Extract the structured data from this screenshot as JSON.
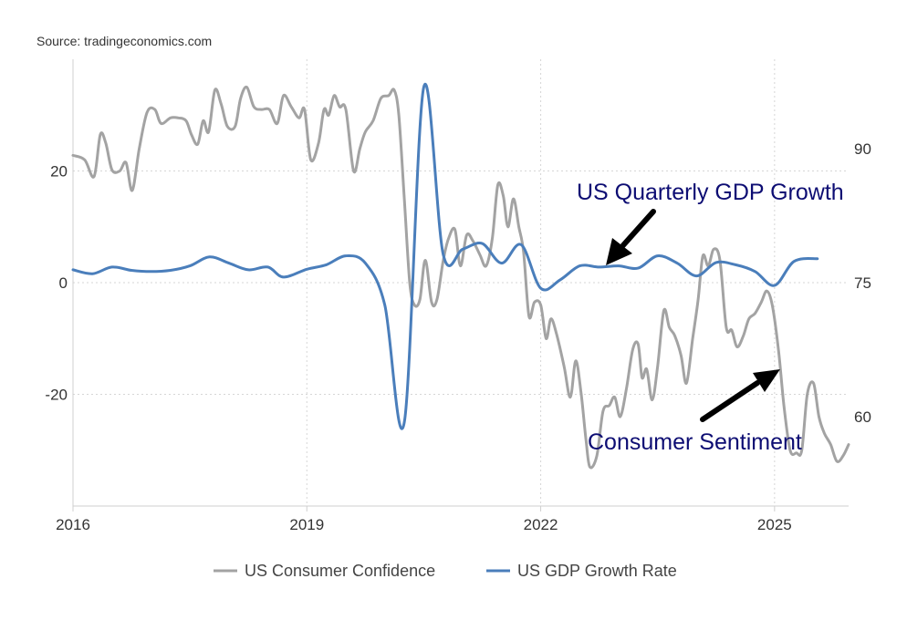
{
  "source": "Source: tradingeconomics.com",
  "chart_data": {
    "type": "line",
    "title": "",
    "xlabel": "",
    "ylabel": "",
    "x_range": [
      2016.0,
      2025.95
    ],
    "x_ticks": [
      {
        "value": 2016,
        "label": "2016"
      },
      {
        "value": 2019,
        "label": "2019"
      },
      {
        "value": 2022,
        "label": "2022"
      },
      {
        "value": 2025,
        "label": "2025"
      }
    ],
    "y_left": {
      "range": [
        -40,
        40
      ],
      "ticks": [
        {
          "value": 20,
          "label": "20"
        },
        {
          "value": 0,
          "label": "0"
        },
        {
          "value": -20,
          "label": "-20"
        }
      ]
    },
    "y_right": {
      "range": [
        50,
        100
      ],
      "ticks": [
        {
          "value": 90,
          "label": "90"
        },
        {
          "value": 75,
          "label": "75"
        },
        {
          "value": 60,
          "label": "60"
        }
      ]
    },
    "grid": true,
    "legend_position": "bottom-center",
    "series": [
      {
        "name": "US Consumer Confidence",
        "axis": "left",
        "color": "#a3a3a3",
        "points": [
          [
            2016.0,
            22.8
          ],
          [
            2016.15,
            22.0
          ],
          [
            2016.27,
            19.0
          ],
          [
            2016.35,
            26.5
          ],
          [
            2016.42,
            25.0
          ],
          [
            2016.5,
            20.2
          ],
          [
            2016.6,
            20.0
          ],
          [
            2016.68,
            21.5
          ],
          [
            2016.76,
            16.5
          ],
          [
            2016.85,
            24.0
          ],
          [
            2016.95,
            30.5
          ],
          [
            2017.05,
            31.0
          ],
          [
            2017.13,
            28.5
          ],
          [
            2017.25,
            29.5
          ],
          [
            2017.35,
            29.5
          ],
          [
            2017.45,
            29.0
          ],
          [
            2017.52,
            26.5
          ],
          [
            2017.6,
            24.8
          ],
          [
            2017.67,
            29.0
          ],
          [
            2017.74,
            27.0
          ],
          [
            2017.82,
            34.5
          ],
          [
            2017.9,
            32.0
          ],
          [
            2017.98,
            28.0
          ],
          [
            2018.08,
            28.0
          ],
          [
            2018.15,
            33.0
          ],
          [
            2018.23,
            35.0
          ],
          [
            2018.32,
            31.5
          ],
          [
            2018.42,
            31.0
          ],
          [
            2018.52,
            31.0
          ],
          [
            2018.62,
            28.5
          ],
          [
            2018.7,
            33.5
          ],
          [
            2018.8,
            31.5
          ],
          [
            2018.9,
            29.5
          ],
          [
            2018.97,
            31.0
          ],
          [
            2019.05,
            22.0
          ],
          [
            2019.15,
            25.0
          ],
          [
            2019.22,
            31.0
          ],
          [
            2019.28,
            30.0
          ],
          [
            2019.35,
            33.5
          ],
          [
            2019.42,
            31.5
          ],
          [
            2019.5,
            31.0
          ],
          [
            2019.6,
            20.0
          ],
          [
            2019.68,
            24.0
          ],
          [
            2019.75,
            27.0
          ],
          [
            2019.85,
            29.0
          ],
          [
            2019.95,
            33.0
          ],
          [
            2020.05,
            33.5
          ],
          [
            2020.12,
            34.5
          ],
          [
            2020.18,
            30.0
          ],
          [
            2020.25,
            15.0
          ],
          [
            2020.32,
            0.0
          ],
          [
            2020.38,
            -4.0
          ],
          [
            2020.45,
            -3.0
          ],
          [
            2020.52,
            4.0
          ],
          [
            2020.6,
            -3.5
          ],
          [
            2020.67,
            -3.0
          ],
          [
            2020.75,
            4.0
          ],
          [
            2020.82,
            8.0
          ],
          [
            2020.9,
            9.5
          ],
          [
            2020.97,
            3.0
          ],
          [
            2021.05,
            8.5
          ],
          [
            2021.13,
            7.5
          ],
          [
            2021.22,
            5.0
          ],
          [
            2021.3,
            3.0
          ],
          [
            2021.38,
            8.0
          ],
          [
            2021.45,
            17.5
          ],
          [
            2021.52,
            15.5
          ],
          [
            2021.58,
            10.0
          ],
          [
            2021.65,
            15.0
          ],
          [
            2021.72,
            10.0
          ],
          [
            2021.78,
            5.5
          ],
          [
            2021.85,
            -6.0
          ],
          [
            2021.92,
            -3.5
          ],
          [
            2022.0,
            -4.0
          ],
          [
            2022.07,
            -10.0
          ],
          [
            2022.13,
            -6.5
          ],
          [
            2022.2,
            -9.0
          ],
          [
            2022.3,
            -15.0
          ],
          [
            2022.38,
            -20.5
          ],
          [
            2022.45,
            -14.0
          ],
          [
            2022.52,
            -20.0
          ],
          [
            2022.58,
            -28.0
          ],
          [
            2022.63,
            -33.0
          ],
          [
            2022.72,
            -31.0
          ],
          [
            2022.8,
            -23.0
          ],
          [
            2022.88,
            -22.0
          ],
          [
            2022.95,
            -20.5
          ],
          [
            2023.02,
            -24.0
          ],
          [
            2023.1,
            -19.0
          ],
          [
            2023.18,
            -12.0
          ],
          [
            2023.25,
            -11.0
          ],
          [
            2023.3,
            -17.0
          ],
          [
            2023.36,
            -15.5
          ],
          [
            2023.43,
            -21.0
          ],
          [
            2023.5,
            -15.0
          ],
          [
            2023.58,
            -5.0
          ],
          [
            2023.65,
            -8.0
          ],
          [
            2023.72,
            -9.5
          ],
          [
            2023.8,
            -13.0
          ],
          [
            2023.87,
            -18.0
          ],
          [
            2023.95,
            -10.0
          ],
          [
            2024.02,
            -3.0
          ],
          [
            2024.08,
            4.8
          ],
          [
            2024.15,
            3.0
          ],
          [
            2024.22,
            6.0
          ],
          [
            2024.3,
            4.0
          ],
          [
            2024.38,
            -8.0
          ],
          [
            2024.45,
            -8.5
          ],
          [
            2024.52,
            -11.5
          ],
          [
            2024.6,
            -9.5
          ],
          [
            2024.67,
            -6.5
          ],
          [
            2024.75,
            -5.5
          ],
          [
            2024.83,
            -3.5
          ],
          [
            2024.9,
            -1.5
          ],
          [
            2024.97,
            -4.0
          ],
          [
            2025.05,
            -12.0
          ],
          [
            2025.12,
            -22.0
          ],
          [
            2025.2,
            -30.0
          ],
          [
            2025.28,
            -30.5
          ],
          [
            2025.35,
            -30.0
          ],
          [
            2025.42,
            -20.0
          ],
          [
            2025.5,
            -18.0
          ],
          [
            2025.57,
            -24.0
          ],
          [
            2025.64,
            -27.0
          ],
          [
            2025.72,
            -29.0
          ],
          [
            2025.8,
            -32.0
          ],
          [
            2025.88,
            -31.0
          ],
          [
            2025.95,
            -29.0
          ]
        ]
      },
      {
        "name": "US GDP Growth Rate",
        "axis": "left",
        "color": "#4a7ebb",
        "points": [
          [
            2016.0,
            2.3
          ],
          [
            2016.25,
            1.6
          ],
          [
            2016.5,
            2.8
          ],
          [
            2016.75,
            2.2
          ],
          [
            2017.0,
            2.0
          ],
          [
            2017.25,
            2.2
          ],
          [
            2017.5,
            3.0
          ],
          [
            2017.75,
            4.6
          ],
          [
            2018.0,
            3.5
          ],
          [
            2018.25,
            2.3
          ],
          [
            2018.5,
            2.8
          ],
          [
            2018.7,
            1.0
          ],
          [
            2019.0,
            2.4
          ],
          [
            2019.25,
            3.2
          ],
          [
            2019.5,
            4.8
          ],
          [
            2019.75,
            3.5
          ],
          [
            2020.0,
            -4.0
          ],
          [
            2020.25,
            -25.0
          ],
          [
            2020.5,
            35.0
          ],
          [
            2020.75,
            5.0
          ],
          [
            2021.0,
            6.0
          ],
          [
            2021.25,
            7.0
          ],
          [
            2021.5,
            3.5
          ],
          [
            2021.75,
            6.8
          ],
          [
            2022.0,
            -1.0
          ],
          [
            2022.25,
            0.5
          ],
          [
            2022.5,
            3.0
          ],
          [
            2022.75,
            2.8
          ],
          [
            2023.0,
            3.0
          ],
          [
            2023.25,
            2.6
          ],
          [
            2023.5,
            4.8
          ],
          [
            2023.75,
            3.5
          ],
          [
            2024.0,
            1.2
          ],
          [
            2024.25,
            3.6
          ],
          [
            2024.5,
            3.2
          ],
          [
            2024.75,
            2.0
          ],
          [
            2025.0,
            -0.5
          ],
          [
            2025.25,
            3.8
          ],
          [
            2025.55,
            4.3
          ]
        ]
      }
    ],
    "annotations": [
      {
        "text": "US Quarterly GDP Growth",
        "color": "#0d0d73"
      },
      {
        "text": "Consumer Sentiment",
        "color": "#0d0d73"
      }
    ]
  }
}
